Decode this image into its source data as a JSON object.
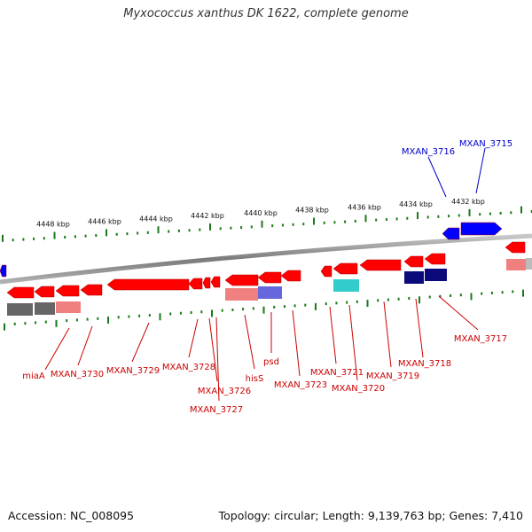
{
  "title": "Myxococcus xanthus DK 1622, complete genome",
  "footer": {
    "accession": "Accession: NC_008095",
    "summary": "Topology: circular; Length: 9,139,763 bp; Genes: 7,410"
  },
  "colors": {
    "forward_gene": "#ff0000",
    "reverse_gene": "#ff0000",
    "reverse_label": "#cc0000",
    "forward_label": "#0000cc",
    "forward_arrow": "#0000ff",
    "backbone": "#888888",
    "ticks": "#1a7a1a"
  },
  "scale_labels": [
    "4448 kbp",
    "4446 kbp",
    "4444 kbp",
    "4442 kbp",
    "4440 kbp",
    "4438 kbp",
    "4436 kbp",
    "4434 kbp",
    "4432 kbp"
  ],
  "reverse_genes": [
    "miaA",
    "MXAN_3730",
    "MXAN_3729",
    "MXAN_3728",
    "MXAN_3726",
    "MXAN_3727",
    "hisS",
    "psd",
    "MXAN_3723",
    "MXAN_3721",
    "MXAN_3720",
    "MXAN_3719",
    "MXAN_3718",
    "MXAN_3717"
  ],
  "forward_genes": [
    "MXAN_3716",
    "MXAN_3715"
  ]
}
